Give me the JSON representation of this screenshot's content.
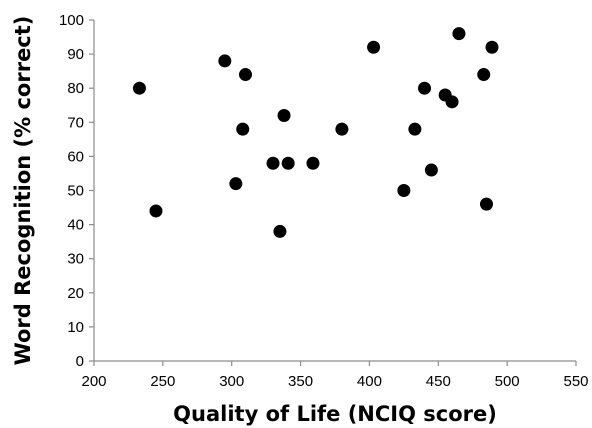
{
  "chart_data": {
    "type": "scatter",
    "xlabel": "Quality of Life (NCIQ score)",
    "ylabel": "Word Recognition (% correct)",
    "xlim": [
      200,
      550
    ],
    "ylim": [
      0,
      100
    ],
    "x_ticks": [
      200,
      250,
      300,
      350,
      400,
      450,
      500,
      550
    ],
    "y_ticks": [
      0,
      10,
      20,
      30,
      40,
      50,
      60,
      70,
      80,
      90,
      100
    ],
    "grid": false,
    "legend": "none",
    "marker_color": "#000000",
    "series": [
      {
        "points": [
          {
            "x": 233,
            "y": 80
          },
          {
            "x": 245,
            "y": 44
          },
          {
            "x": 295,
            "y": 88
          },
          {
            "x": 303,
            "y": 52
          },
          {
            "x": 308,
            "y": 68
          },
          {
            "x": 310,
            "y": 84
          },
          {
            "x": 330,
            "y": 58
          },
          {
            "x": 335,
            "y": 38
          },
          {
            "x": 338,
            "y": 72
          },
          {
            "x": 341,
            "y": 58
          },
          {
            "x": 359,
            "y": 58
          },
          {
            "x": 380,
            "y": 68
          },
          {
            "x": 403,
            "y": 92
          },
          {
            "x": 425,
            "y": 50
          },
          {
            "x": 433,
            "y": 68
          },
          {
            "x": 440,
            "y": 80
          },
          {
            "x": 445,
            "y": 56
          },
          {
            "x": 455,
            "y": 78
          },
          {
            "x": 460,
            "y": 76
          },
          {
            "x": 465,
            "y": 96
          },
          {
            "x": 483,
            "y": 84
          },
          {
            "x": 485,
            "y": 46
          },
          {
            "x": 489,
            "y": 92
          }
        ]
      }
    ]
  }
}
